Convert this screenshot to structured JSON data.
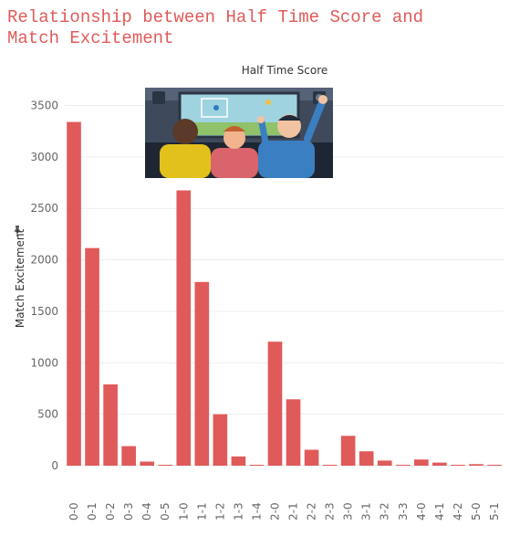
{
  "page": {
    "title": "Relationship between Half Time Score and Match Excitement"
  },
  "icons": {
    "pin": "pin-icon",
    "illustration": "football-fans-illustration"
  },
  "colors": {
    "bar": "#e05a5a",
    "title": "#e05a5a",
    "grid": "#eeeeee",
    "tick": "#666666"
  },
  "chart_data": {
    "type": "bar",
    "title": "Half Time Score",
    "xlabel": "",
    "ylabel": "Match Excitement",
    "ylim": [
      0,
      3700
    ],
    "yticks": [
      0,
      500,
      1000,
      1500,
      2000,
      2500,
      3000,
      3500
    ],
    "grid": true,
    "categories": [
      "0-0",
      "0-1",
      "0-2",
      "0-3",
      "0-4",
      "0-5",
      "1-0",
      "1-1",
      "1-2",
      "1-3",
      "1-4",
      "2-0",
      "2-1",
      "2-2",
      "2-3",
      "3-0",
      "3-1",
      "3-2",
      "3-3",
      "4-0",
      "4-1",
      "4-2",
      "5-0",
      "5-1"
    ],
    "values": [
      3340,
      2115,
      790,
      190,
      40,
      5,
      2675,
      1785,
      500,
      90,
      5,
      1205,
      645,
      155,
      5,
      290,
      140,
      50,
      5,
      60,
      30,
      5,
      15,
      5
    ]
  }
}
